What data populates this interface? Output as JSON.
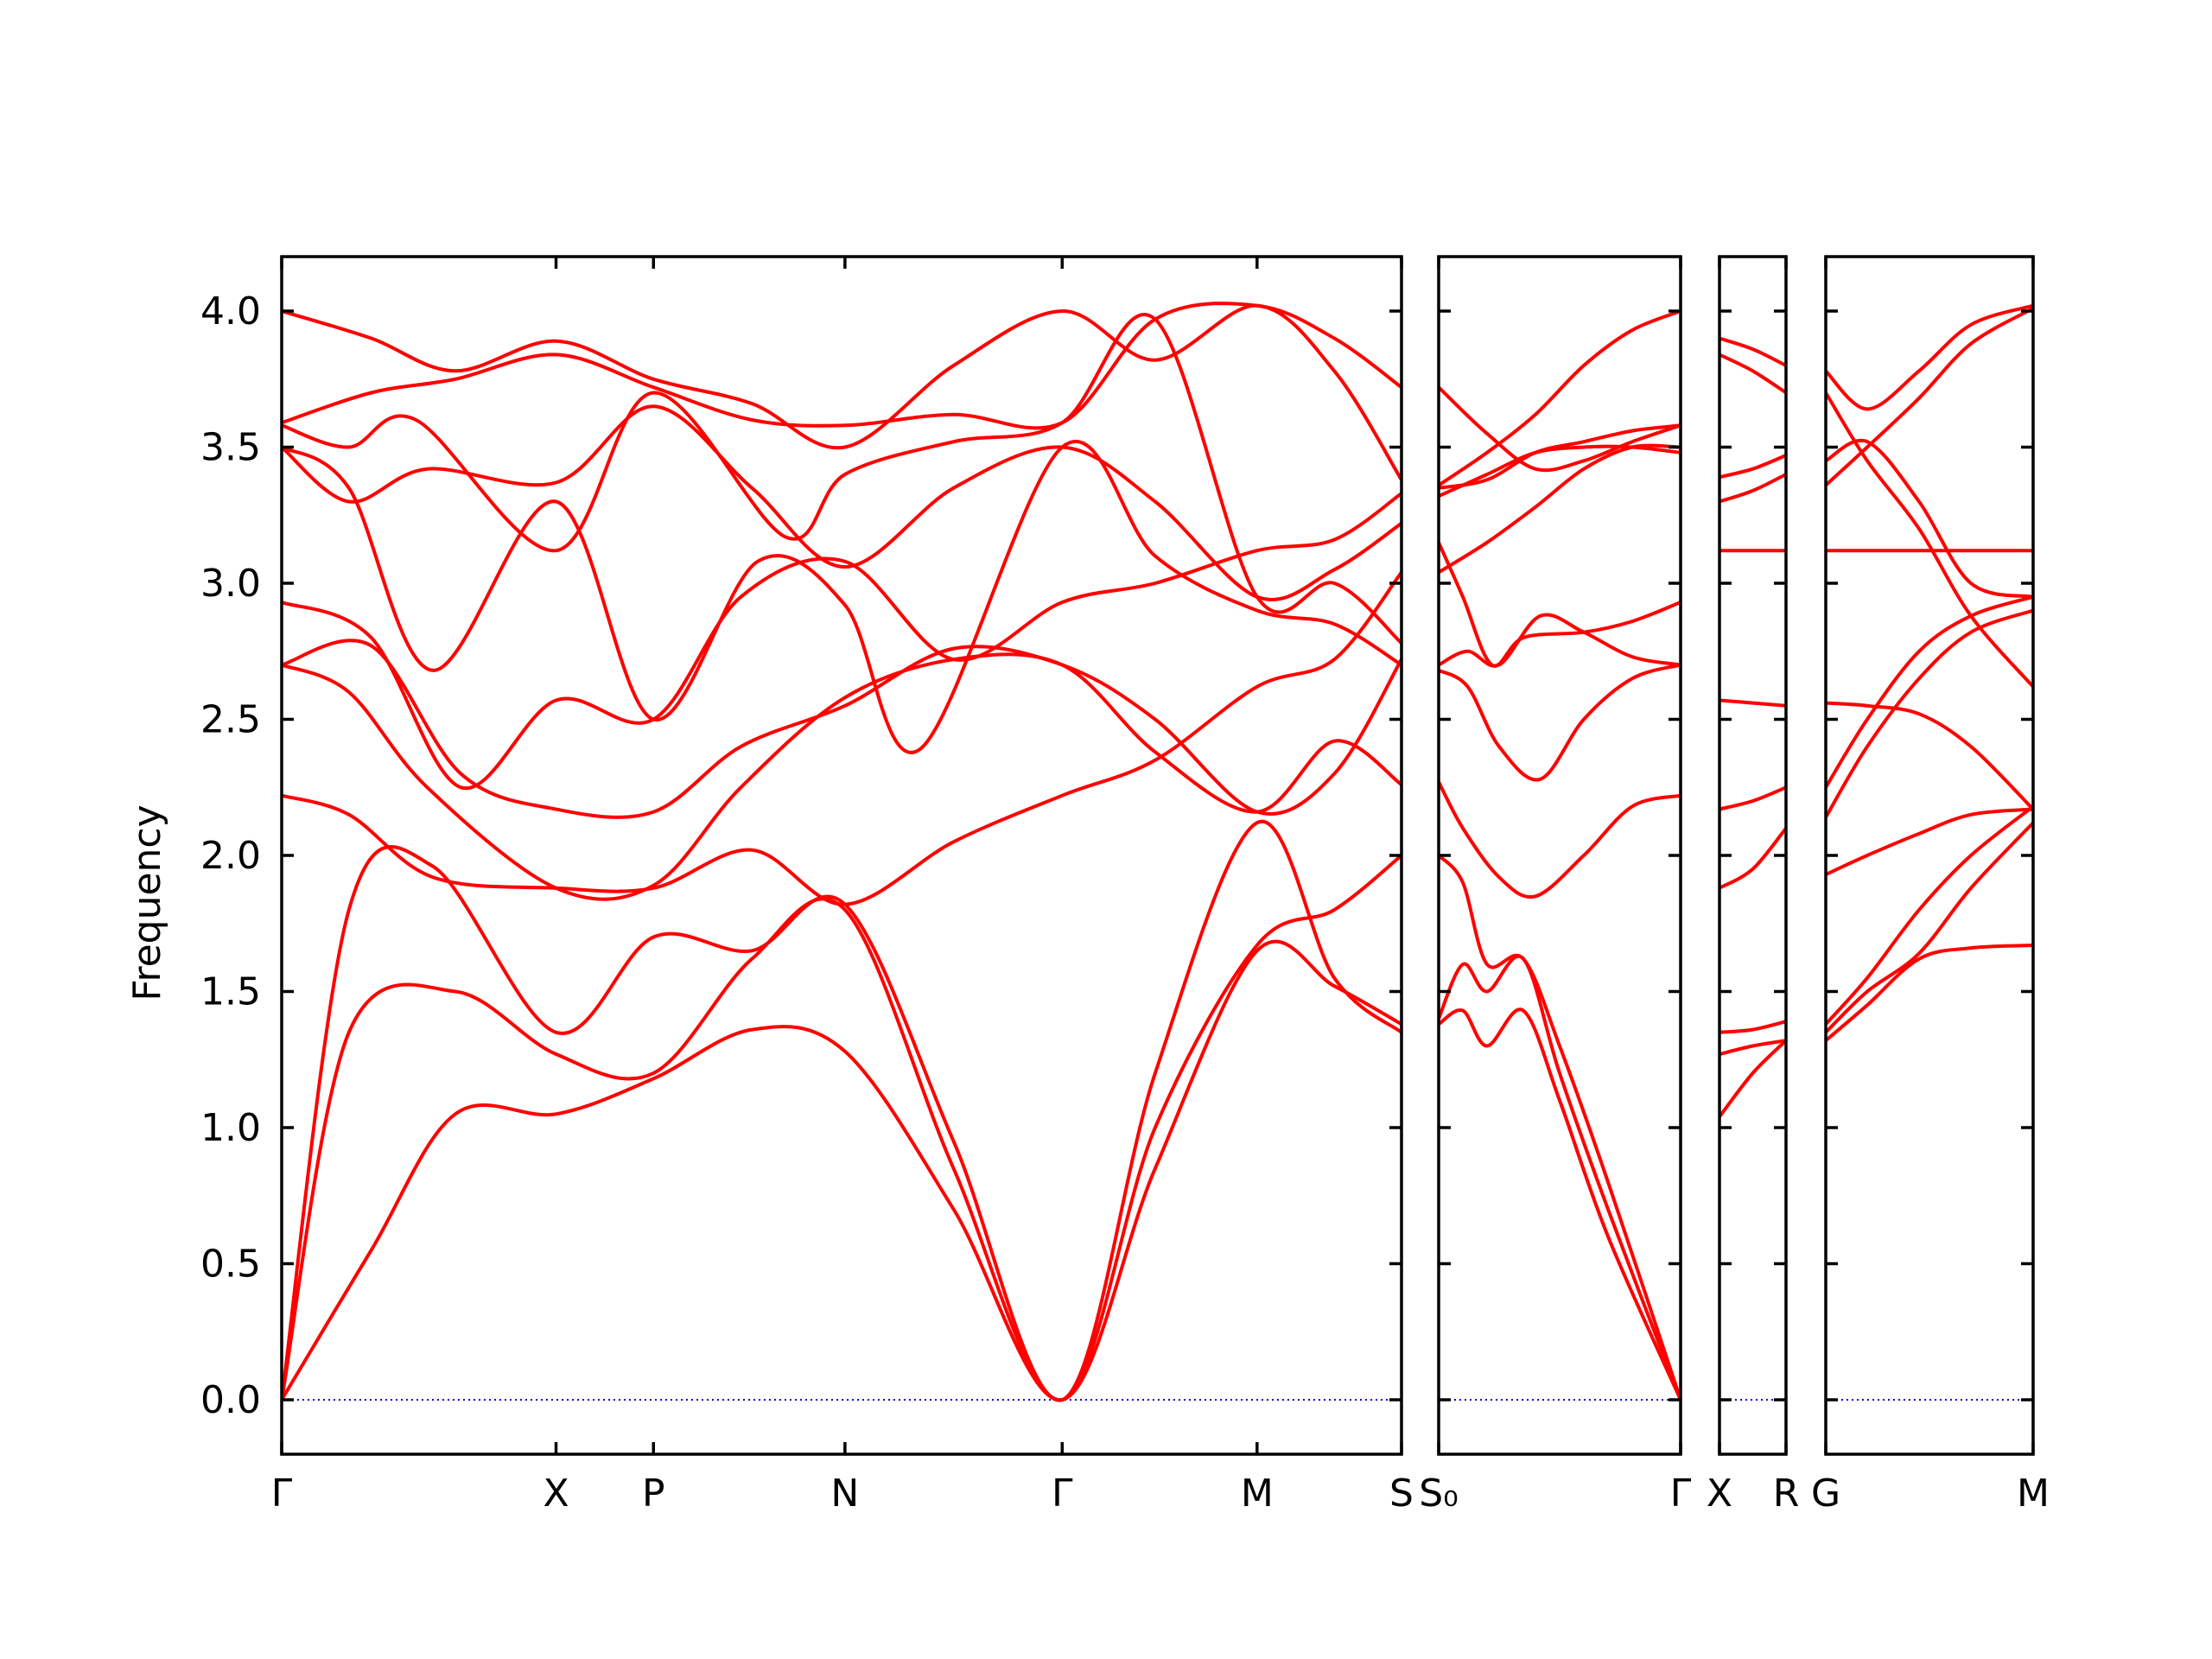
{
  "chart_data": {
    "type": "line",
    "ylabel": "Frequency",
    "ylim": [
      -0.2,
      4.2
    ],
    "yticks": [
      "0.0",
      "0.5",
      "1.0",
      "1.5",
      "2.0",
      "2.5",
      "3.0",
      "3.5",
      "4.0"
    ],
    "colors": {
      "bands": "#ff0000",
      "zero_line": "#0000cc"
    },
    "panels": [
      {
        "id": "panel-1",
        "x_range": [
          0,
          1
        ],
        "labels": [
          "Γ",
          "X",
          "P",
          "N",
          "Γ",
          "M",
          "S"
        ],
        "label_positions": [
          0,
          0.245,
          0.332,
          0.503,
          0.697,
          0.871,
          1.0
        ],
        "bands": [
          {
            "x": [
              0,
              0.08,
              0.155,
              0.245,
              0.332,
              0.42,
              0.503,
              0.6,
              0.697,
              0.78,
              0.871,
              0.94,
              1.0
            ],
            "y": [
              0,
              0.55,
              1.05,
              1.05,
              1.18,
              1.36,
              1.28,
              0.7,
              0,
              0.85,
              1.65,
              1.52,
              1.38
            ]
          },
          {
            "x": [
              0,
              0.06,
              0.155,
              0.245,
              0.332,
              0.42,
              0.503,
              0.6,
              0.697,
              0.78,
              0.871,
              0.94,
              1.0
            ],
            "y": [
              0,
              1.35,
              1.5,
              1.27,
              1.2,
              1.62,
              1.8,
              0.85,
              0,
              1.0,
              1.67,
              1.8,
              2.0
            ]
          },
          {
            "x": [
              0,
              0.06,
              0.135,
              0.245,
              0.332,
              0.42,
              0.503,
              0.6,
              0.697,
              0.78,
              0.871,
              0.94,
              1.0
            ],
            "y": [
              0,
              1.8,
              1.96,
              1.35,
              1.7,
              1.65,
              1.82,
              0.95,
              0,
              1.2,
              2.12,
              1.55,
              1.35
            ]
          },
          {
            "x": [
              0,
              0.06,
              0.135,
              0.245,
              0.332,
              0.42,
              0.503,
              0.6,
              0.697,
              0.78,
              0.871,
              0.94,
              1.0
            ],
            "y": [
              2.22,
              2.15,
              1.92,
              1.88,
              1.88,
              2.02,
              1.82,
              2.05,
              2.22,
              2.35,
              2.62,
              2.72,
              3.04
            ]
          },
          {
            "x": [
              0,
              0.06,
              0.13,
              0.245,
              0.332,
              0.41,
              0.503,
              0.6,
              0.697,
              0.78,
              0.871,
              0.94,
              1.0
            ],
            "y": [
              2.7,
              2.6,
              2.25,
              1.88,
              1.89,
              2.25,
              2.58,
              2.72,
              2.7,
              2.38,
              2.16,
              2.42,
              2.26
            ]
          },
          {
            "x": [
              0,
              0.08,
              0.16,
              0.245,
              0.332,
              0.41,
              0.503,
              0.6,
              0.697,
              0.78,
              0.871,
              0.94,
              1.0
            ],
            "y": [
              2.7,
              2.77,
              2.3,
              2.17,
              2.16,
              2.4,
              2.55,
              2.76,
              2.7,
              2.5,
              2.16,
              2.3,
              2.72
            ]
          },
          {
            "x": [
              0,
              0.08,
              0.16,
              0.245,
              0.332,
              0.41,
              0.503,
              0.6,
              0.697,
              0.78,
              0.871,
              0.94,
              1.0
            ],
            "y": [
              2.93,
              2.8,
              2.25,
              2.57,
              2.5,
              2.95,
              3.08,
              2.72,
              2.93,
              3.0,
              3.12,
              3.16,
              3.33
            ]
          },
          {
            "x": [
              0,
              0.06,
              0.135,
              0.245,
              0.332,
              0.425,
              0.503,
              0.57,
              0.697,
              0.78,
              0.871,
              0.94,
              1.0
            ],
            "y": [
              3.5,
              3.35,
              2.68,
              3.3,
              2.5,
              3.08,
              2.92,
              2.39,
              3.5,
              3.1,
              2.9,
              2.85,
              2.7
            ]
          },
          {
            "x": [
              0,
              0.06,
              0.13,
              0.245,
              0.332,
              0.42,
              0.503,
              0.6,
              0.697,
              0.78,
              0.871,
              0.94,
              1.0
            ],
            "y": [
              3.5,
              3.3,
              3.42,
              3.37,
              3.65,
              3.35,
              3.06,
              3.35,
              3.5,
              3.3,
              2.95,
              3.05,
              3.22
            ]
          },
          {
            "x": [
              0,
              0.06,
              0.12,
              0.245,
              0.332,
              0.45,
              0.503,
              0.6,
              0.697,
              0.78,
              0.871,
              0.94,
              1.0
            ],
            "y": [
              3.58,
              3.5,
              3.6,
              3.12,
              3.7,
              3.17,
              3.4,
              3.52,
              3.59,
              3.97,
              2.95,
              3.0,
              2.78
            ]
          },
          {
            "x": [
              0,
              0.08,
              0.155,
              0.245,
              0.332,
              0.42,
              0.503,
              0.6,
              0.697,
              0.78,
              0.871,
              0.94,
              1.0
            ],
            "y": [
              3.59,
              3.7,
              3.75,
              3.84,
              3.72,
              3.6,
              3.58,
              3.62,
              3.59,
              3.97,
              4.02,
              3.9,
              3.72
            ]
          },
          {
            "x": [
              0,
              0.08,
              0.155,
              0.245,
              0.332,
              0.42,
              0.503,
              0.6,
              0.697,
              0.78,
              0.871,
              0.94,
              1.0
            ],
            "y": [
              4.0,
              3.9,
              3.78,
              3.89,
              3.75,
              3.66,
              3.5,
              3.8,
              4.0,
              3.82,
              4.02,
              3.78,
              3.38
            ]
          }
        ]
      },
      {
        "id": "panel-2",
        "x_range": [
          0,
          1
        ],
        "labels": [
          "S₀",
          "Γ"
        ],
        "label_positions": [
          0,
          1.0
        ],
        "bands": [
          {
            "x": [
              0,
              0.1,
              0.2,
              0.35,
              0.5,
              0.7,
              1.0
            ],
            "y": [
              1.38,
              1.43,
              1.3,
              1.43,
              1.1,
              0.6,
              0
            ]
          },
          {
            "x": [
              0,
              0.1,
              0.2,
              0.35,
              0.5,
              0.7,
              1.0
            ],
            "y": [
              1.4,
              1.6,
              1.5,
              1.62,
              1.2,
              0.7,
              0
            ]
          },
          {
            "x": [
              0,
              0.1,
              0.2,
              0.35,
              0.5,
              0.7,
              1.0
            ],
            "y": [
              2.0,
              1.9,
              1.6,
              1.62,
              1.3,
              0.8,
              0
            ]
          },
          {
            "x": [
              0,
              0.1,
              0.25,
              0.4,
              0.6,
              0.8,
              1.0
            ],
            "y": [
              2.27,
              2.1,
              1.92,
              1.85,
              2.0,
              2.18,
              2.22
            ]
          },
          {
            "x": [
              0,
              0.12,
              0.25,
              0.42,
              0.6,
              0.8,
              1.0
            ],
            "y": [
              2.68,
              2.62,
              2.4,
              2.28,
              2.5,
              2.65,
              2.7
            ]
          },
          {
            "x": [
              0,
              0.12,
              0.25,
              0.42,
              0.6,
              0.8,
              1.0
            ],
            "y": [
              2.7,
              2.75,
              2.7,
              2.88,
              2.82,
              2.73,
              2.7
            ]
          },
          {
            "x": [
              0,
              0.1,
              0.22,
              0.35,
              0.6,
              0.8,
              1.0
            ],
            "y": [
              3.15,
              2.95,
              2.7,
              2.8,
              2.82,
              2.86,
              2.93
            ]
          },
          {
            "x": [
              0,
              0.2,
              0.4,
              0.6,
              0.8,
              1.0
            ],
            "y": [
              3.04,
              3.15,
              3.28,
              3.42,
              3.5,
              3.5
            ]
          },
          {
            "x": [
              0,
              0.2,
              0.4,
              0.6,
              0.8,
              1.0
            ],
            "y": [
              3.32,
              3.4,
              3.48,
              3.5,
              3.5,
              3.48
            ]
          },
          {
            "x": [
              0,
              0.2,
              0.4,
              0.6,
              0.8,
              1.0
            ],
            "y": [
              3.35,
              3.38,
              3.48,
              3.52,
              3.56,
              3.58
            ]
          },
          {
            "x": [
              0,
              0.2,
              0.4,
              0.6,
              0.8,
              1.0
            ],
            "y": [
              3.36,
              3.48,
              3.62,
              3.8,
              3.93,
              4.0
            ]
          },
          {
            "x": [
              0,
              0.2,
              0.4,
              0.6,
              0.8,
              1.0
            ],
            "y": [
              3.72,
              3.55,
              3.42,
              3.45,
              3.52,
              3.58
            ]
          }
        ]
      },
      {
        "id": "panel-3",
        "x_range": [
          0,
          1
        ],
        "labels": [
          "X",
          "R"
        ],
        "label_positions": [
          0,
          1.0
        ],
        "bands": [
          {
            "x": [
              0,
              0.5,
              1.0
            ],
            "y": [
              1.04,
              1.2,
              1.32
            ]
          },
          {
            "x": [
              0,
              0.5,
              1.0
            ],
            "y": [
              1.27,
              1.3,
              1.32
            ]
          },
          {
            "x": [
              0,
              0.5,
              1.0
            ],
            "y": [
              1.35,
              1.36,
              1.39
            ]
          },
          {
            "x": [
              0,
              0.5,
              1.0
            ],
            "y": [
              1.88,
              1.95,
              2.1
            ]
          },
          {
            "x": [
              0,
              0.5,
              1.0
            ],
            "y": [
              2.17,
              2.2,
              2.25
            ]
          },
          {
            "x": [
              0,
              0.5,
              1.0
            ],
            "y": [
              2.57,
              2.56,
              2.55
            ]
          },
          {
            "x": [
              0,
              0.5,
              1.0
            ],
            "y": [
              3.12,
              3.12,
              3.12
            ]
          },
          {
            "x": [
              0,
              0.5,
              1.0
            ],
            "y": [
              3.3,
              3.34,
              3.4
            ]
          },
          {
            "x": [
              0,
              0.5,
              1.0
            ],
            "y": [
              3.39,
              3.42,
              3.47
            ]
          },
          {
            "x": [
              0,
              0.5,
              1.0
            ],
            "y": [
              3.84,
              3.78,
              3.7
            ]
          },
          {
            "x": [
              0,
              0.5,
              1.0
            ],
            "y": [
              3.9,
              3.86,
              3.8
            ]
          }
        ]
      },
      {
        "id": "panel-4",
        "x_range": [
          0,
          1
        ],
        "labels": [
          "G",
          "M"
        ],
        "label_positions": [
          0,
          1.0
        ],
        "bands": [
          {
            "x": [
              0,
              0.2,
              0.45,
              0.7,
              1.0
            ],
            "y": [
              1.32,
              1.45,
              1.62,
              1.66,
              1.67
            ]
          },
          {
            "x": [
              0,
              0.2,
              0.45,
              0.7,
              1.0
            ],
            "y": [
              1.35,
              1.5,
              1.64,
              1.88,
              2.12
            ]
          },
          {
            "x": [
              0,
              0.2,
              0.45,
              0.7,
              1.0
            ],
            "y": [
              1.38,
              1.55,
              1.8,
              2.0,
              2.18
            ]
          },
          {
            "x": [
              0,
              0.2,
              0.45,
              0.7,
              1.0
            ],
            "y": [
              1.93,
              2.0,
              2.08,
              2.15,
              2.17
            ]
          },
          {
            "x": [
              0,
              0.2,
              0.45,
              0.7,
              1.0
            ],
            "y": [
              2.14,
              2.4,
              2.65,
              2.82,
              2.9
            ]
          },
          {
            "x": [
              0,
              0.2,
              0.45,
              0.7,
              1.0
            ],
            "y": [
              2.25,
              2.5,
              2.75,
              2.88,
              2.95
            ]
          },
          {
            "x": [
              0,
              0.2,
              0.45,
              0.7,
              1.0
            ],
            "y": [
              2.56,
              2.55,
              2.52,
              2.4,
              2.17
            ]
          },
          {
            "x": [
              0,
              1.0
            ],
            "y": [
              3.12,
              3.12
            ]
          },
          {
            "x": [
              0,
              0.2,
              0.45,
              0.7,
              1.0
            ],
            "y": [
              3.36,
              3.5,
              3.68,
              3.88,
              4.01
            ]
          },
          {
            "x": [
              0,
              0.2,
              0.45,
              0.7,
              1.0
            ],
            "y": [
              3.45,
              3.52,
              3.3,
              3.0,
              2.95
            ]
          },
          {
            "x": [
              0,
              0.2,
              0.45,
              0.7,
              1.0
            ],
            "y": [
              3.7,
              3.45,
              3.2,
              2.88,
              2.62
            ]
          },
          {
            "x": [
              0,
              0.2,
              0.45,
              0.7,
              1.0
            ],
            "y": [
              3.78,
              3.64,
              3.78,
              3.95,
              4.02
            ]
          }
        ]
      }
    ]
  }
}
